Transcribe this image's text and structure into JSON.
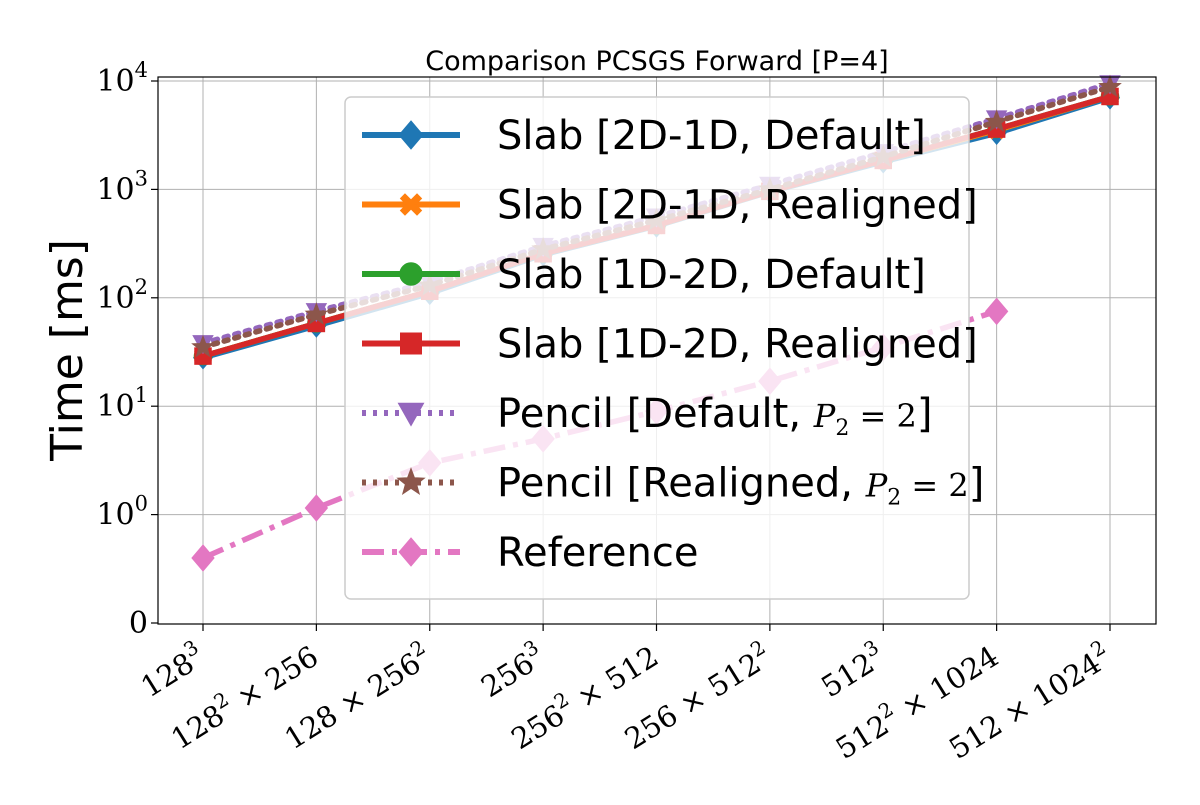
{
  "chart_data": {
    "type": "line",
    "title": "Comparison PCSGS Forward [P=4]",
    "ylabel": "Time [ms]",
    "xlabel": "",
    "y_scale": "symlog",
    "ylim": [
      0,
      15000
    ],
    "y_ticks": [
      {
        "main": "0",
        "exp": ""
      },
      {
        "main": "10",
        "exp": "0"
      },
      {
        "main": "10",
        "exp": "1"
      },
      {
        "main": "10",
        "exp": "2"
      },
      {
        "main": "10",
        "exp": "3"
      },
      {
        "main": "10",
        "exp": "4"
      }
    ],
    "categories": [
      {
        "a": "128",
        "ae": "3",
        "op": "",
        "b": "",
        "be": ""
      },
      {
        "a": "128",
        "ae": "2",
        "op": "×",
        "b": "256",
        "be": ""
      },
      {
        "a": "128",
        "ae": "",
        "op": "×",
        "b": "256",
        "be": "2"
      },
      {
        "a": "256",
        "ae": "3",
        "op": "",
        "b": "",
        "be": ""
      },
      {
        "a": "256",
        "ae": "2",
        "op": "×",
        "b": "512",
        "be": ""
      },
      {
        "a": "256",
        "ae": "",
        "op": "×",
        "b": "512",
        "be": "2"
      },
      {
        "a": "512",
        "ae": "3",
        "op": "",
        "b": "",
        "be": ""
      },
      {
        "a": "512",
        "ae": "2",
        "op": "×",
        "b": "1024",
        "be": ""
      },
      {
        "a": "512",
        "ae": "",
        "op": "×",
        "b": "1024",
        "be": "2"
      }
    ],
    "grid": true,
    "legend_position": "center",
    "series": [
      {
        "name": "Slab [2D-1D, Default]",
        "color": "#1f77b4",
        "dash": "solid",
        "marker": "diamond",
        "values": [
          28,
          55,
          110,
          250,
          460,
          950,
          1800,
          3300,
          7000
        ]
      },
      {
        "name": "Slab [2D-1D, Realigned]",
        "color": "#ff7f0e",
        "dash": "solid",
        "marker": "x",
        "values": [
          29,
          58,
          115,
          255,
          465,
          960,
          1850,
          3500,
          7200
        ]
      },
      {
        "name": "Slab [1D-2D, Default]",
        "color": "#2ca02c",
        "dash": "solid",
        "marker": "circle",
        "values": [
          29,
          58,
          115,
          255,
          465,
          960,
          1850,
          3600,
          7200
        ]
      },
      {
        "name": "Slab [1D-2D, Realigned]",
        "color": "#d62728",
        "dash": "solid",
        "marker": "square",
        "values": [
          29,
          58,
          115,
          255,
          465,
          960,
          1850,
          3600,
          7200
        ]
      },
      {
        "name": "Pencil [Default, ",
        "math": "P",
        "math_sub": "2",
        "math_rest": " = 2",
        "suffix": "]",
        "color": "#9467bd",
        "dash": "dot",
        "marker": "triangle-down",
        "values": [
          38,
          75,
          140,
          300,
          560,
          1100,
          2200,
          4500,
          9500
        ]
      },
      {
        "name": "Pencil [Realigned, ",
        "math": "P",
        "math_sub": "2",
        "math_rest": " = 2",
        "suffix": "]",
        "color": "#8c564b",
        "dash": "dot",
        "marker": "star",
        "values": [
          35,
          70,
          130,
          280,
          520,
          1000,
          2000,
          4200,
          8800
        ]
      },
      {
        "name": "Reference",
        "color": "#e377c2",
        "dash": "dashdot",
        "marker": "diamond",
        "values": [
          0.6,
          1.15,
          3,
          5,
          9,
          17,
          35,
          75,
          null
        ]
      }
    ]
  }
}
